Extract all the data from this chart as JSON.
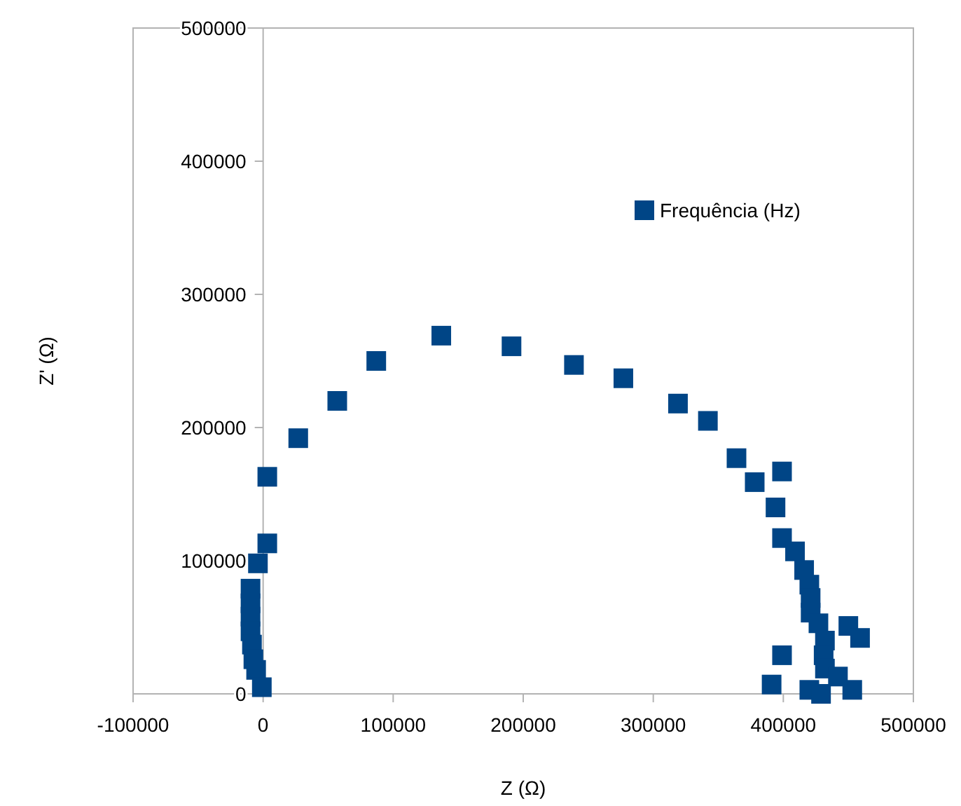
{
  "chart_data": {
    "type": "scatter",
    "xlabel": "Z (Ω)",
    "ylabel": "Z' (Ω)",
    "xlim": [
      -100000,
      500000
    ],
    "xticks": [
      -100000,
      0,
      100000,
      200000,
      300000,
      400000,
      500000
    ],
    "ylim": [
      0,
      500000
    ],
    "yticks": [
      0,
      100000,
      200000,
      300000,
      400000,
      500000
    ],
    "grid": false,
    "legend": "top right",
    "marker": "square",
    "series": [
      {
        "name": "Frequência (Hz)",
        "color": "#004586",
        "x": [
          3200,
          27000,
          57000,
          87000,
          137000,
          191000,
          239000,
          277000,
          319000,
          342000,
          364000,
          378000,
          399000,
          3200,
          -4000,
          -9700,
          -9700,
          -9700,
          -9700,
          -8600,
          -7500,
          -5400,
          -1000,
          394000,
          399000,
          409000,
          416000,
          420000,
          421000,
          421000,
          427000,
          450000,
          459000,
          432000,
          431000,
          399000,
          391000,
          432000,
          420000,
          453000,
          442000,
          429000
        ],
        "values": [
          163000,
          192000,
          220000,
          250000,
          269000,
          261000,
          247000,
          237000,
          218000,
          205000,
          177000,
          159000,
          167000,
          113000,
          98000,
          79000,
          68000,
          58000,
          47000,
          37000,
          26000,
          18000,
          5000,
          140000,
          117000,
          107000,
          93000,
          82000,
          72000,
          61000,
          53000,
          51000,
          42000,
          40000,
          29000,
          29000,
          7000,
          19000,
          3000,
          3000,
          13000,
          0
        ]
      }
    ]
  }
}
